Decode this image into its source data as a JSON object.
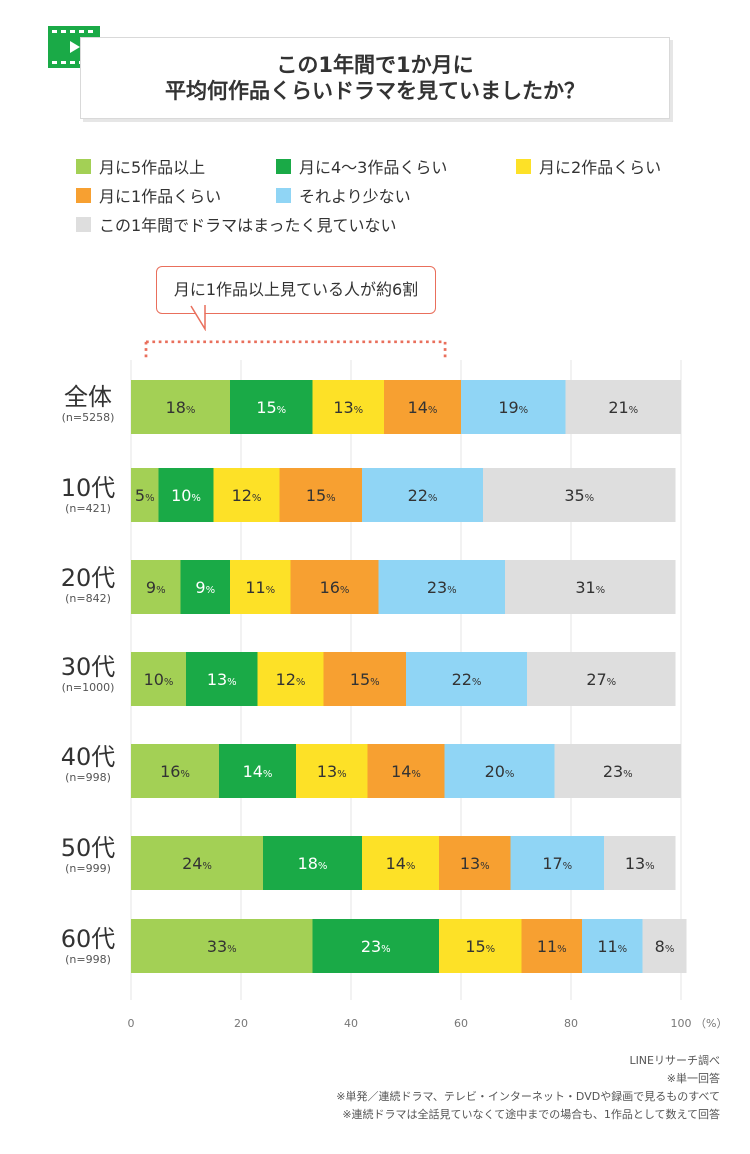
{
  "header": {
    "title_line1": "この1年間で1か月に",
    "title_line2": "平均何作品くらいドラマを見ていましたか？"
  },
  "icon": "video-play-icon",
  "legend": [
    {
      "label": "月に5作品以上",
      "color": "#a3d055"
    },
    {
      "label": "月に4～3作品くらい",
      "color": "#1aaa47"
    },
    {
      "label": "月に2作品くらい",
      "color": "#fde127"
    },
    {
      "label": "月に1作品くらい",
      "color": "#f7a031"
    },
    {
      "label": "それより少ない",
      "color": "#90d5f5"
    },
    {
      "label": "この1年間でドラマはまったく見ていない",
      "color": "#dedede"
    }
  ],
  "callout": "月に1作品以上見ている人が約6割",
  "rows": [
    {
      "label": "全体",
      "n": "(n=5258)"
    },
    {
      "label": "10代",
      "n": "(n=421)"
    },
    {
      "label": "20代",
      "n": "(n=842)"
    },
    {
      "label": "30代",
      "n": "(n=1000)"
    },
    {
      "label": "40代",
      "n": "(n=998)"
    },
    {
      "label": "50代",
      "n": "(n=999)"
    },
    {
      "label": "60代",
      "n": "(n=998)"
    }
  ],
  "chart_data": {
    "type": "bar",
    "orientation": "horizontal-stacked-100",
    "categories": [
      "全体",
      "10代",
      "20代",
      "30代",
      "40代",
      "50代",
      "60代"
    ],
    "series": [
      {
        "name": "月に5作品以上",
        "values": [
          18,
          5,
          9,
          10,
          16,
          24,
          33
        ]
      },
      {
        "name": "月に4～3作品くらい",
        "values": [
          15,
          10,
          9,
          13,
          14,
          18,
          23
        ]
      },
      {
        "name": "月に2作品くらい",
        "values": [
          13,
          12,
          11,
          12,
          13,
          14,
          15
        ]
      },
      {
        "name": "月に1作品くらい",
        "values": [
          14,
          15,
          16,
          15,
          14,
          13,
          11
        ]
      },
      {
        "name": "それより少ない",
        "values": [
          19,
          22,
          23,
          22,
          20,
          17,
          11
        ]
      },
      {
        "name": "この1年間でドラマはまったく見ていない",
        "values": [
          21,
          35,
          31,
          27,
          23,
          13,
          8
        ]
      }
    ],
    "value_suffix": "%",
    "xlim": [
      0,
      100
    ],
    "xticks": [
      "0",
      "20",
      "40",
      "60",
      "80",
      "100"
    ],
    "xunit": "（%）",
    "grid": true
  },
  "footer": [
    "LINEリサーチ調べ",
    "※単一回答",
    "※単発／連続ドラマ、テレビ・インターネット・DVDや録画で見るものすべて",
    "※連続ドラマは全話見ていなくて途中までの場合も、1作品として数えて回答"
  ]
}
